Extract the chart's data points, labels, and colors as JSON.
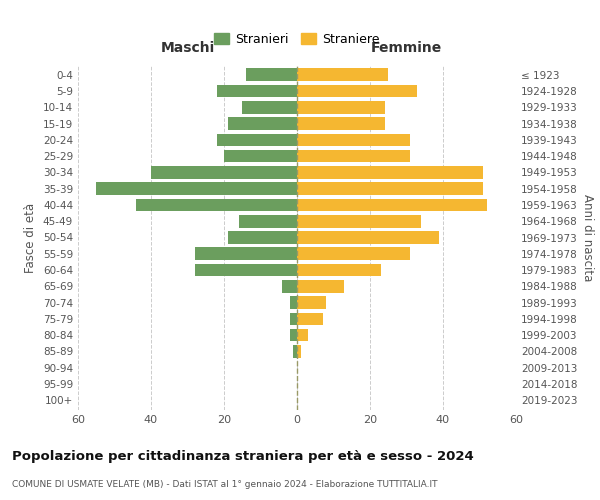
{
  "age_groups": [
    "0-4",
    "5-9",
    "10-14",
    "15-19",
    "20-24",
    "25-29",
    "30-34",
    "35-39",
    "40-44",
    "45-49",
    "50-54",
    "55-59",
    "60-64",
    "65-69",
    "70-74",
    "75-79",
    "80-84",
    "85-89",
    "90-94",
    "95-99",
    "100+"
  ],
  "birth_years": [
    "2019-2023",
    "2014-2018",
    "2009-2013",
    "2004-2008",
    "1999-2003",
    "1994-1998",
    "1989-1993",
    "1984-1988",
    "1979-1983",
    "1974-1978",
    "1969-1973",
    "1964-1968",
    "1959-1963",
    "1954-1958",
    "1949-1953",
    "1944-1948",
    "1939-1943",
    "1934-1938",
    "1929-1933",
    "1924-1928",
    "≤ 1923"
  ],
  "maschi": [
    14,
    22,
    15,
    19,
    22,
    20,
    40,
    55,
    44,
    16,
    19,
    28,
    28,
    4,
    2,
    2,
    2,
    1,
    0,
    0,
    0
  ],
  "femmine": [
    25,
    33,
    24,
    24,
    31,
    31,
    51,
    51,
    52,
    34,
    39,
    31,
    23,
    13,
    8,
    7,
    3,
    1,
    0,
    0,
    0
  ],
  "color_maschi": "#6b9e5e",
  "color_femmine": "#f5b731",
  "title": "Popolazione per cittadinanza straniera per età e sesso - 2024",
  "subtitle": "COMUNE DI USMATE VELATE (MB) - Dati ISTAT al 1° gennaio 2024 - Elaborazione TUTTITALIA.IT",
  "legend_maschi": "Stranieri",
  "legend_femmine": "Straniere",
  "xlabel_left": "Maschi",
  "xlabel_right": "Femmine",
  "ylabel_left": "Fasce di età",
  "ylabel_right": "Anni di nascita",
  "xlim": 60,
  "background_color": "#ffffff",
  "grid_color": "#cccccc"
}
